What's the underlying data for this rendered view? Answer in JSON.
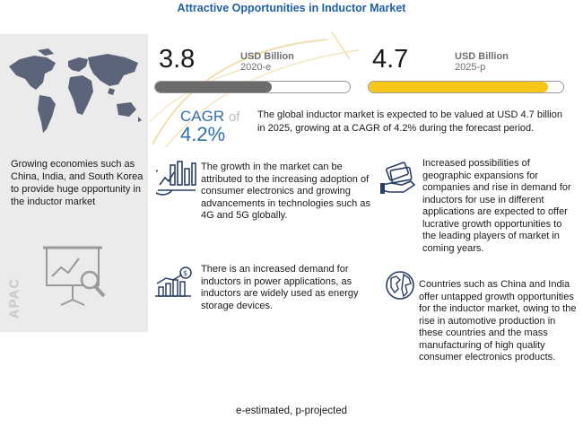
{
  "title": "Attractive Opportunities in Inductor Market",
  "market_2020": {
    "value": "3.8",
    "unit": "USD Billion",
    "year": "2020-e",
    "bar_fraction": 0.6,
    "bar_color": "#6b6b6b"
  },
  "market_2025": {
    "value": "4.7",
    "unit": "USD Billion",
    "year": "2025-p",
    "bar_fraction": 0.92,
    "bar_color": "#f5c518"
  },
  "cagr": {
    "label": "CAGR",
    "of": "of",
    "value": "4.2%"
  },
  "summary": "The global inductor market is expected to be valued at USD 4.7 billion in 2025, growing at a CAGR of 4.2% during the forecast period.",
  "region": {
    "label": "APAC",
    "description": "Growing economies such as China, India, and  South Korea to provide huge opportunity in the inductor market"
  },
  "points": [
    {
      "icon": "growth-chart-icon",
      "text": "The growth in the market can be attributed to the increasing adoption of consumer electronics and growing advancements in technologies such as 4G and 5G globally."
    },
    {
      "icon": "money-hand-icon",
      "text": "Increased possibilities of geographic expansions for companies and rise in demand for inductors for use in different applications are expected to offer lucrative growth opportunities to the leading players of market in coming years."
    },
    {
      "icon": "dollar-bar-chart-icon",
      "text": "There is an increased demand for inductors in power applications, as inductors are widely used as energy storage devices."
    },
    {
      "icon": "globe-icon",
      "text": "Countries such as China and India offer untapped growth opportunities for the inductor market, owing to the rise in automotive production in these countries and the mass manufacturing of high quality consumer electronics products."
    }
  ],
  "footnote": "e-estimated, p-projected",
  "colors": {
    "title": "#1f5fa8",
    "accent": "#2e6fb0",
    "map": "#5b6478",
    "panel": "#ebebeb",
    "yellow": "#f5c518"
  }
}
